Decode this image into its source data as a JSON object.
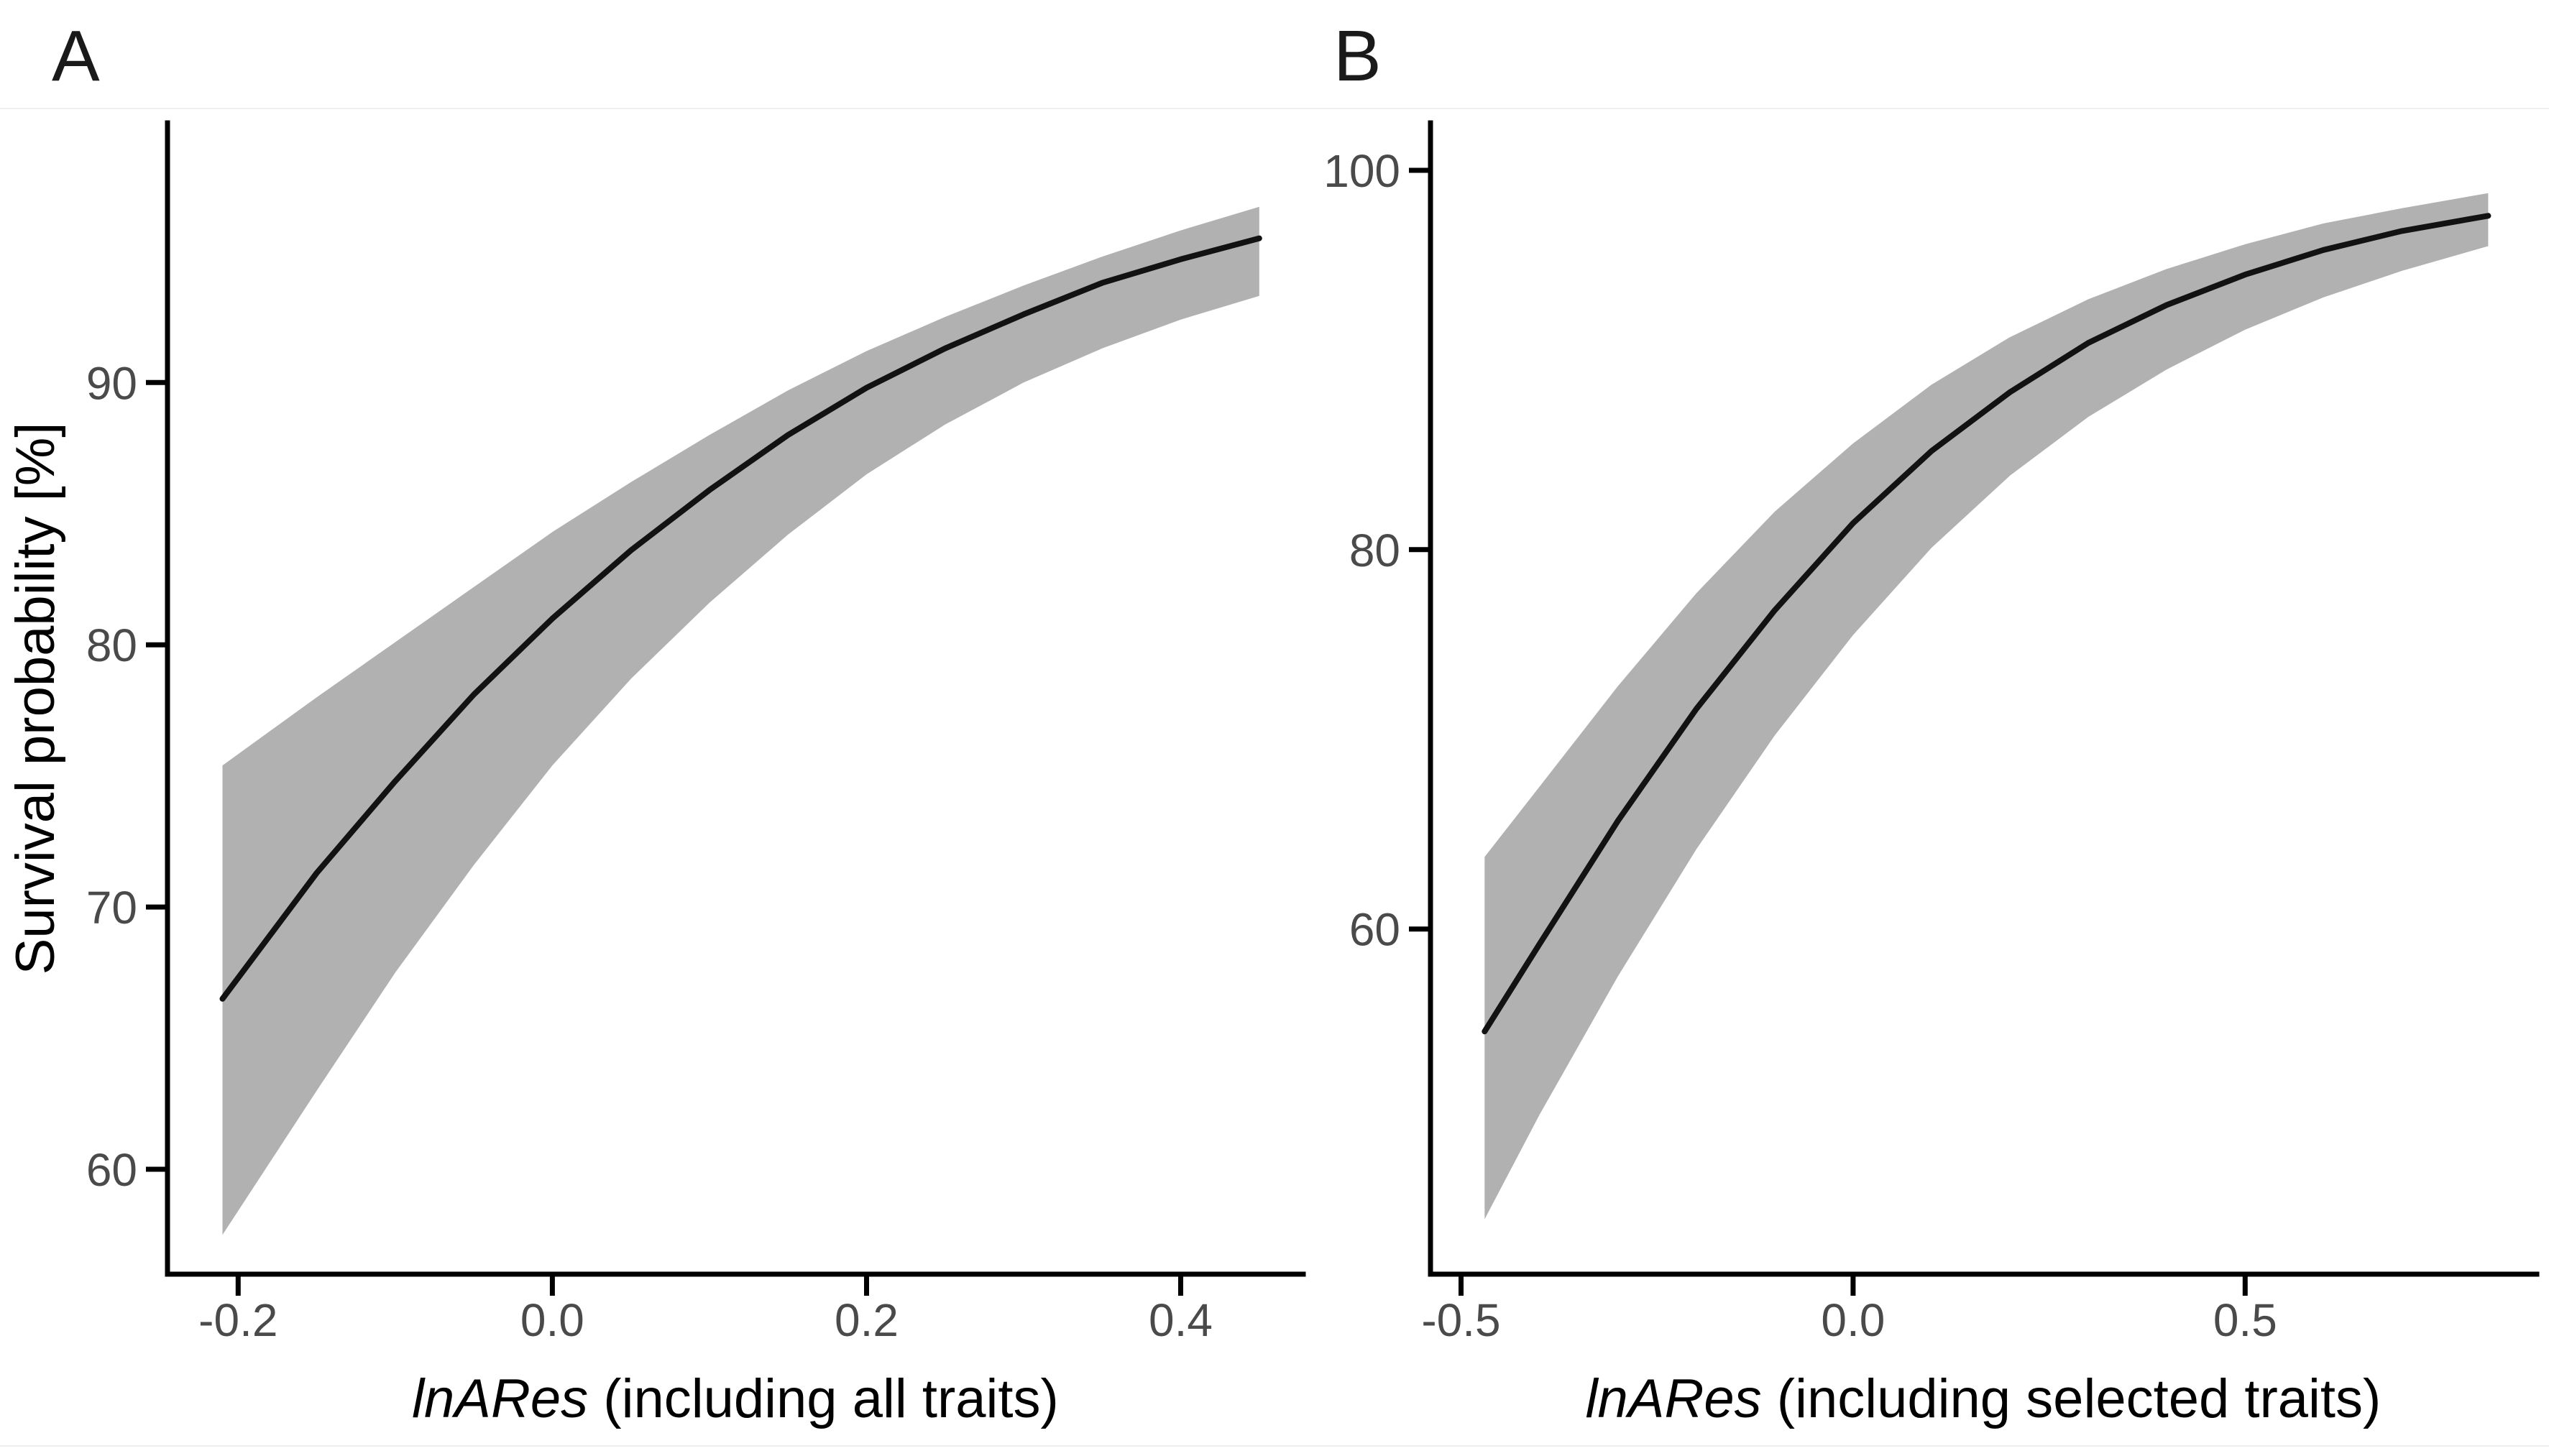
{
  "figure": {
    "panels": [
      {
        "label": "A"
      },
      {
        "label": "B"
      }
    ]
  },
  "chart_data": [
    {
      "type": "line",
      "panel": "A",
      "xlabel_italic": "lnARes",
      "xlabel_rest": " (including all traits)",
      "ylabel": "Survival probability [%]",
      "xlim": [
        -0.245,
        0.478
      ],
      "ylim": [
        56.0,
        99.9
      ],
      "xticks": [
        -0.2,
        0.0,
        0.2,
        0.4
      ],
      "xticklabels": [
        "-0.2",
        "0.0",
        "0.2",
        "0.4"
      ],
      "yticks": [
        60,
        70,
        80,
        90
      ],
      "yticklabels": [
        "60",
        "70",
        "80",
        "90"
      ],
      "grid": false,
      "legend": false,
      "line_color": "#121212",
      "ribbon_color": "#b1b1b1",
      "series": [
        {
          "name": "predicted survival probability",
          "x": [
            -0.21,
            -0.15,
            -0.1,
            -0.05,
            0.0,
            0.05,
            0.1,
            0.15,
            0.2,
            0.25,
            0.3,
            0.35,
            0.4,
            0.45
          ],
          "y": [
            66.5,
            71.3,
            74.8,
            78.1,
            81.0,
            83.6,
            85.9,
            88.0,
            89.8,
            91.3,
            92.6,
            93.8,
            94.7,
            95.5
          ]
        },
        {
          "name": "95% CI lower",
          "x": [
            -0.21,
            -0.15,
            -0.1,
            -0.05,
            0.0,
            0.05,
            0.1,
            0.15,
            0.2,
            0.25,
            0.3,
            0.35,
            0.4,
            0.45
          ],
          "y": [
            57.5,
            63.0,
            67.5,
            71.6,
            75.4,
            78.7,
            81.6,
            84.2,
            86.5,
            88.4,
            90.0,
            91.3,
            92.4,
            93.3
          ]
        },
        {
          "name": "95% CI upper",
          "x": [
            -0.21,
            -0.15,
            -0.1,
            -0.05,
            0.0,
            0.05,
            0.1,
            0.15,
            0.2,
            0.25,
            0.3,
            0.35,
            0.4,
            0.45
          ],
          "y": [
            75.4,
            78.0,
            80.1,
            82.2,
            84.3,
            86.2,
            88.0,
            89.7,
            91.2,
            92.5,
            93.7,
            94.8,
            95.8,
            96.7
          ]
        }
      ]
    },
    {
      "type": "line",
      "panel": "B",
      "xlabel_italic": "lnARes",
      "xlabel_rest": " (including selected traits)",
      "ylabel": "",
      "xlim": [
        -0.539,
        0.872
      ],
      "ylim": [
        41.8,
        102.5
      ],
      "xticks": [
        -0.5,
        0.0,
        0.5
      ],
      "xticklabels": [
        "-0.5",
        "0.0",
        "0.5"
      ],
      "yticks": [
        60,
        80,
        100
      ],
      "yticklabels": [
        "60",
        "80",
        "100"
      ],
      "grid": false,
      "legend": false,
      "line_color": "#121212",
      "ribbon_color": "#b1b1b1",
      "series": [
        {
          "name": "predicted survival probability",
          "x": [
            -0.47,
            -0.4,
            -0.3,
            -0.2,
            -0.1,
            0.0,
            0.1,
            0.2,
            0.3,
            0.4,
            0.5,
            0.6,
            0.7,
            0.81
          ],
          "y": [
            54.6,
            59.2,
            65.7,
            71.6,
            76.8,
            81.4,
            85.2,
            88.3,
            90.9,
            92.9,
            94.5,
            95.8,
            96.8,
            97.6
          ]
        },
        {
          "name": "95% CI lower",
          "x": [
            -0.47,
            -0.4,
            -0.3,
            -0.2,
            -0.1,
            0.0,
            0.1,
            0.2,
            0.3,
            0.4,
            0.5,
            0.6,
            0.7,
            0.81
          ],
          "y": [
            44.7,
            50.2,
            57.5,
            64.2,
            70.2,
            75.5,
            80.1,
            83.9,
            87.0,
            89.5,
            91.6,
            93.3,
            94.7,
            96.0
          ]
        },
        {
          "name": "95% CI upper",
          "x": [
            -0.47,
            -0.4,
            -0.3,
            -0.2,
            -0.1,
            0.0,
            0.1,
            0.2,
            0.3,
            0.4,
            0.5,
            0.6,
            0.7,
            0.81
          ],
          "y": [
            63.8,
            67.5,
            72.8,
            77.7,
            82.0,
            85.6,
            88.7,
            91.2,
            93.2,
            94.8,
            96.1,
            97.2,
            98.0,
            98.8
          ]
        }
      ]
    }
  ]
}
